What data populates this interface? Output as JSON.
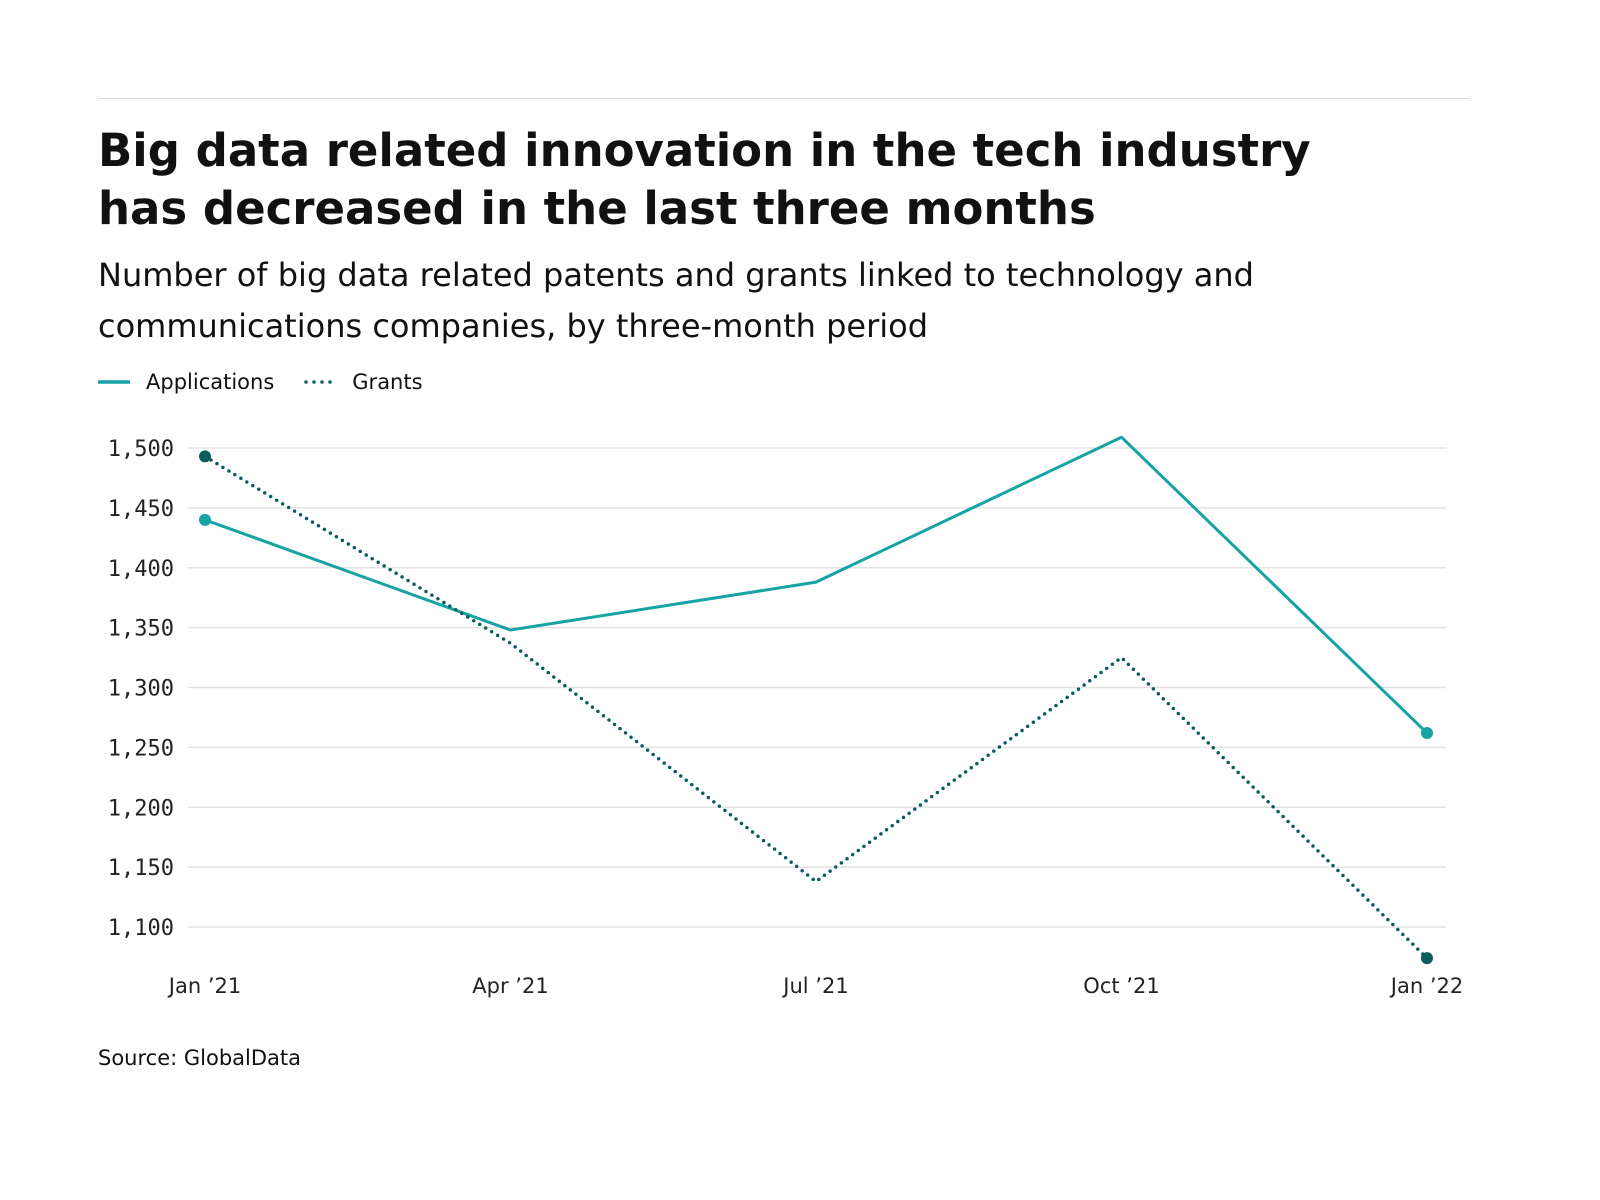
{
  "title": "Big data related innovation in the tech industry has decreased in the last three months",
  "subtitle": "Number of big data related patents and grants linked to technology and communications companies, by three-month period",
  "source": "Source: GlobalData",
  "colors": {
    "applications": "#17a3a3",
    "grants": "#0b5c5c",
    "grid": "#e3e3e3"
  },
  "chart_data": {
    "type": "line",
    "title": "Big data related innovation in the tech industry has decreased in the last three months",
    "x": [
      "Jan ’21",
      "Apr ’21",
      "Jul ’21",
      "Oct ’21",
      "Jan ’22"
    ],
    "yticks": [
      1100,
      1150,
      1200,
      1250,
      1300,
      1350,
      1400,
      1450,
      1500
    ],
    "ytick_labels": [
      "1,100",
      "1,150",
      "1,200",
      "1,250",
      "1,300",
      "1,350",
      "1,400",
      "1,450",
      "1,500"
    ],
    "grid": true,
    "legend_placement": "top-left",
    "series": [
      {
        "name": "Applications",
        "style": "solid",
        "values": [
          1440,
          1348,
          1388,
          1509,
          1262
        ]
      },
      {
        "name": "Grants",
        "style": "dotted",
        "values": [
          1493,
          1337,
          1138,
          1325,
          1074
        ]
      }
    ]
  }
}
